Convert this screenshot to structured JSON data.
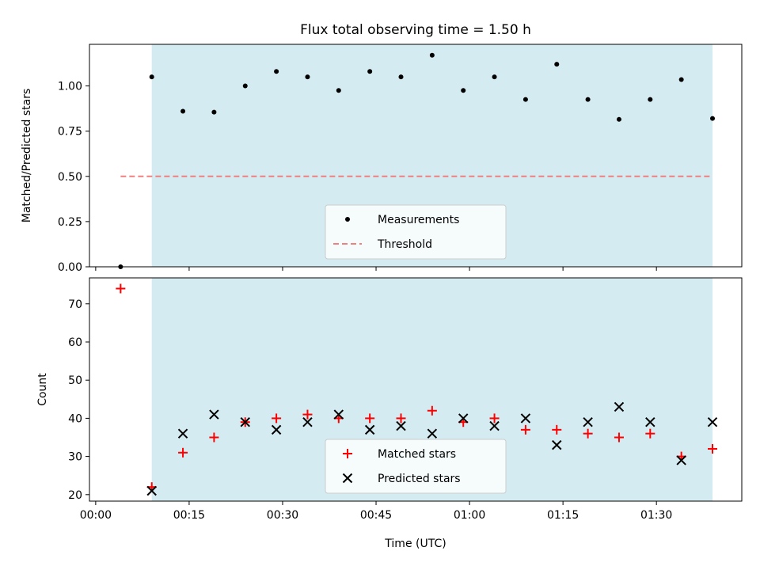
{
  "title": "Flux total observing time = 1.50 h",
  "shared_xlabel": "Time (UTC)",
  "x_ticks": [
    "00:00",
    "00:15",
    "00:30",
    "00:45",
    "01:00",
    "01:15",
    "01:30"
  ],
  "colors": {
    "span": "#d3ebf1",
    "threshold": "#f08080",
    "matched": "#ff0000",
    "predicted": "#000000",
    "measure": "#000000"
  },
  "chart_data": [
    {
      "type": "scatter",
      "ylabel": "Matched/Predicted stars",
      "x_unit": "minutes after 00:00 UTC",
      "xlim": [
        -1,
        103.7
      ],
      "ylim": [
        0,
        1.23
      ],
      "y_ticks": [
        "0.00",
        "0.25",
        "0.50",
        "0.75",
        "1.00"
      ],
      "y_tick_values": [
        0,
        0.25,
        0.5,
        0.75,
        1.0
      ],
      "shaded_span": [
        9,
        99
      ],
      "legend": {
        "position": "lower-center",
        "entries": [
          "Measurements",
          "Threshold"
        ]
      },
      "series": [
        {
          "name": "Measurements",
          "marker": "dot",
          "x": [
            4,
            9,
            14,
            19,
            24,
            29,
            34,
            39,
            44,
            49,
            54,
            59,
            64,
            69,
            74,
            79,
            84,
            89,
            94,
            99
          ],
          "y": [
            0.0,
            1.05,
            0.86,
            0.855,
            1.0,
            1.08,
            1.05,
            0.975,
            1.08,
            1.05,
            1.17,
            0.975,
            1.05,
            0.925,
            1.12,
            0.925,
            0.815,
            0.925,
            1.035,
            0.82
          ]
        },
        {
          "name": "Threshold",
          "marker": "dashed-line",
          "x": [
            4,
            99
          ],
          "y": [
            0.5,
            0.5
          ]
        }
      ]
    },
    {
      "type": "scatter",
      "ylabel": "Count",
      "x_unit": "minutes after 00:00 UTC",
      "xlim": [
        -1,
        103.7
      ],
      "ylim": [
        18.3,
        76.8
      ],
      "y_ticks": [
        "20",
        "30",
        "40",
        "50",
        "60",
        "70"
      ],
      "y_tick_values": [
        20,
        30,
        40,
        50,
        60,
        70
      ],
      "shaded_span": [
        9,
        99
      ],
      "legend": {
        "position": "lower-center",
        "entries": [
          "Matched stars",
          "Predicted stars"
        ]
      },
      "series": [
        {
          "name": "Matched stars",
          "marker": "plus",
          "x": [
            4,
            9,
            14,
            19,
            24,
            29,
            34,
            39,
            44,
            49,
            54,
            59,
            64,
            69,
            74,
            79,
            84,
            89,
            94,
            99
          ],
          "y": [
            74,
            22,
            31,
            35,
            39,
            40,
            41,
            40,
            40,
            40,
            42,
            39,
            40,
            37,
            37,
            36,
            35,
            36,
            30,
            32
          ]
        },
        {
          "name": "Predicted stars",
          "marker": "x",
          "x": [
            9,
            14,
            19,
            24,
            29,
            34,
            39,
            44,
            49,
            54,
            59,
            64,
            69,
            74,
            79,
            84,
            89,
            94,
            99
          ],
          "y": [
            21,
            36,
            41,
            39,
            37,
            39,
            41,
            37,
            38,
            36,
            40,
            38,
            40,
            33,
            39,
            43,
            39,
            29,
            39
          ]
        }
      ]
    }
  ]
}
